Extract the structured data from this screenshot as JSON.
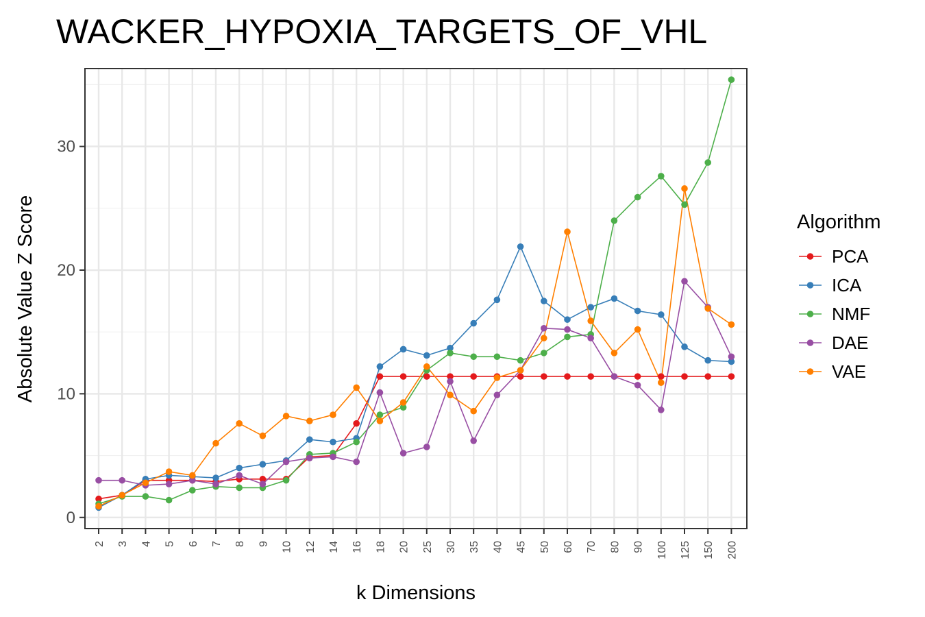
{
  "chart_data": {
    "type": "line",
    "title": "WACKER_HYPOXIA_TARGETS_OF_VHL",
    "xlabel": "k Dimensions",
    "ylabel": "Absolute Value Z Score",
    "categories": [
      "2",
      "3",
      "4",
      "5",
      "6",
      "7",
      "8",
      "9",
      "10",
      "12",
      "14",
      "16",
      "18",
      "20",
      "25",
      "30",
      "35",
      "40",
      "45",
      "50",
      "60",
      "70",
      "80",
      "90",
      "100",
      "125",
      "150",
      "200"
    ],
    "y_ticks": [
      0,
      10,
      20,
      30
    ],
    "ylim": [
      -0.9,
      36.3
    ],
    "grid": true,
    "legend": {
      "title": "Algorithm",
      "position": "right"
    },
    "series": [
      {
        "name": "PCA",
        "color": "#E41A1C",
        "values": [
          1.5,
          1.8,
          3.0,
          3.0,
          3.0,
          2.9,
          3.1,
          3.1,
          3.1,
          4.9,
          5.0,
          7.6,
          11.4,
          11.4,
          11.4,
          11.4,
          11.4,
          11.4,
          11.4,
          11.4,
          11.4,
          11.4,
          11.4,
          11.4,
          11.4,
          11.4,
          11.4,
          11.4
        ]
      },
      {
        "name": "ICA",
        "color": "#377EB8",
        "values": [
          0.8,
          1.8,
          3.1,
          3.4,
          3.3,
          3.2,
          4.0,
          4.3,
          4.6,
          6.3,
          6.1,
          6.4,
          12.2,
          13.6,
          13.1,
          13.7,
          15.7,
          17.6,
          21.9,
          17.5,
          16.0,
          17.0,
          17.7,
          16.7,
          16.4,
          13.8,
          12.7,
          12.6
        ]
      },
      {
        "name": "NMF",
        "color": "#4DAF4A",
        "values": [
          1.1,
          1.7,
          1.7,
          1.4,
          2.2,
          2.5,
          2.4,
          2.4,
          3.0,
          5.1,
          5.2,
          6.1,
          8.3,
          8.9,
          11.9,
          13.3,
          13.0,
          13.0,
          12.7,
          13.3,
          14.6,
          14.8,
          24.0,
          25.9,
          27.6,
          25.3,
          28.7,
          35.4
        ]
      },
      {
        "name": "DAE",
        "color": "#984EA3",
        "values": [
          3.0,
          3.0,
          2.6,
          2.7,
          3.0,
          2.7,
          3.4,
          2.7,
          4.5,
          4.8,
          4.9,
          4.5,
          10.1,
          5.2,
          5.7,
          11.0,
          6.2,
          9.9,
          11.9,
          15.3,
          15.2,
          14.5,
          11.4,
          10.7,
          8.7,
          19.1,
          17.0,
          13.0
        ]
      },
      {
        "name": "VAE",
        "color": "#FF7F00",
        "values": [
          0.9,
          1.8,
          2.8,
          3.7,
          3.4,
          6.0,
          7.6,
          6.6,
          8.2,
          7.8,
          8.3,
          10.5,
          7.8,
          9.3,
          12.2,
          9.9,
          8.6,
          11.3,
          11.9,
          14.5,
          23.1,
          15.9,
          13.3,
          15.2,
          10.9,
          26.6,
          16.9,
          15.6
        ]
      }
    ]
  }
}
